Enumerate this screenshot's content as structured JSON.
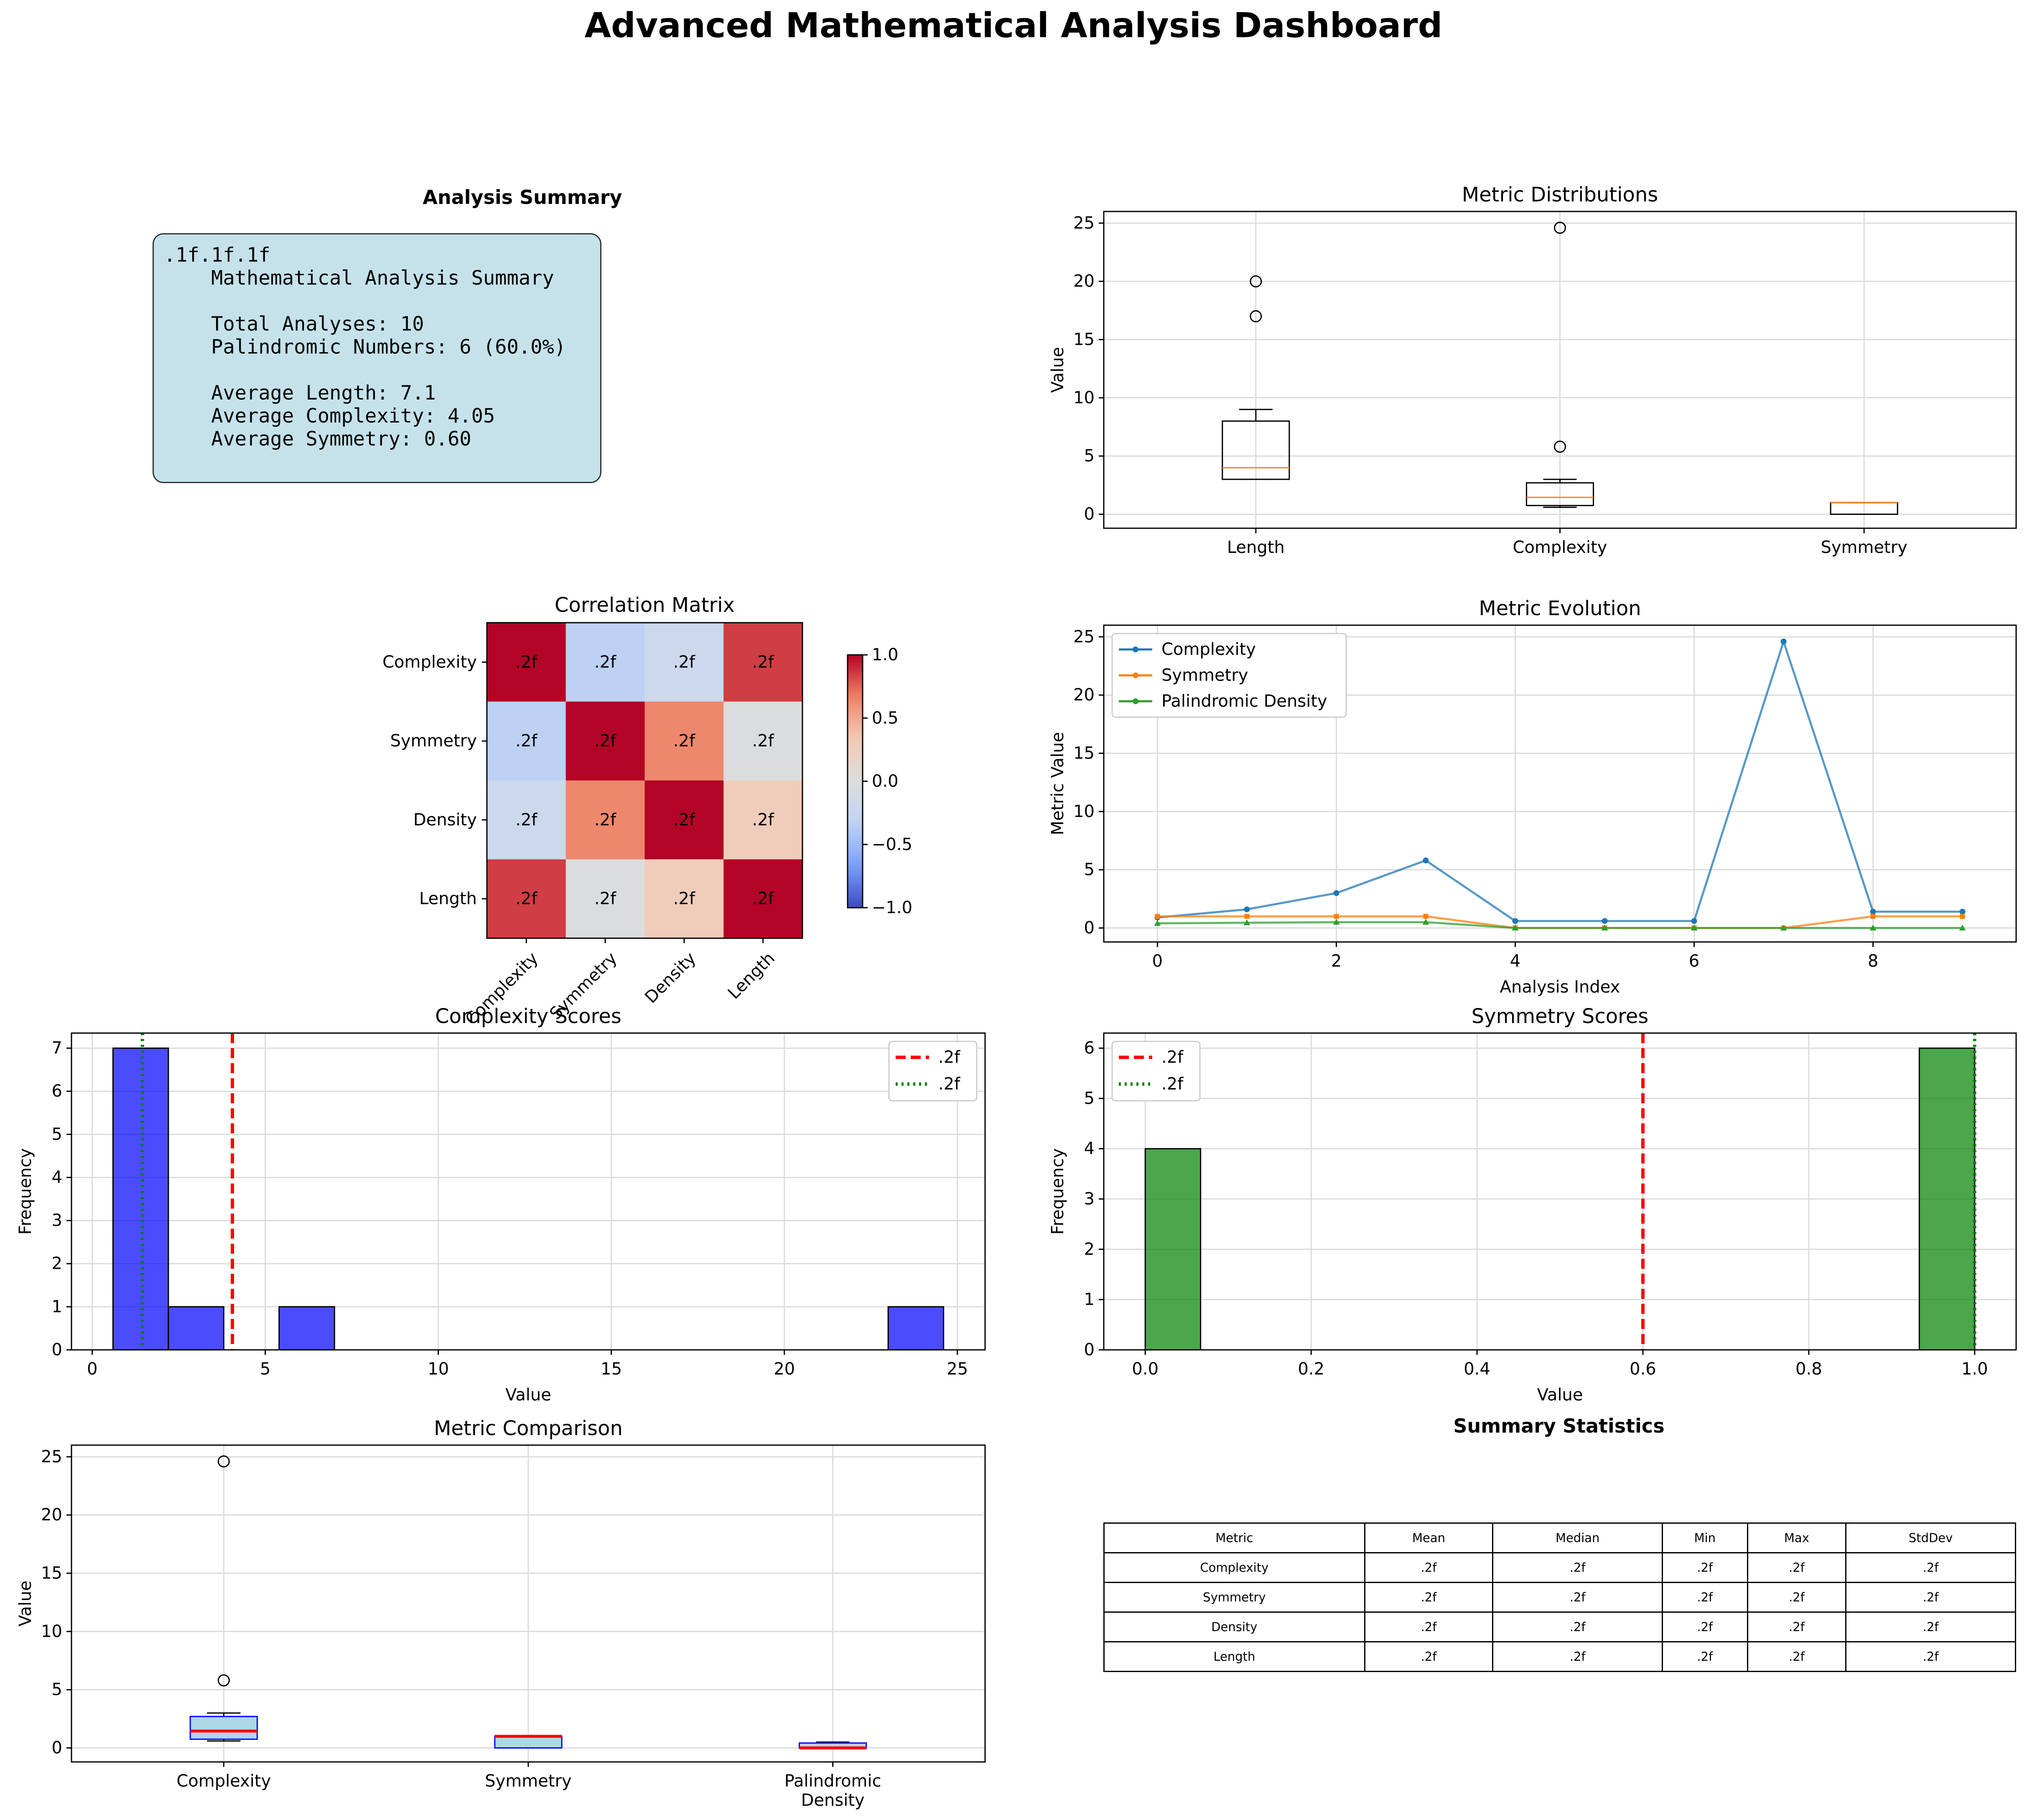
{
  "title": "Advanced Mathematical Analysis Dashboard",
  "summary": {
    "title": "Analysis Summary",
    "lines": [
      ".1f.1f.1f",
      "    Mathematical Analysis Summary",
      "",
      "    Total Analyses: 10",
      "    Palindromic Numbers: 6 (60.0%)",
      "",
      "    Average Length: 7.1",
      "    Average Complexity: 4.05",
      "    Average Symmetry: 0.60"
    ]
  },
  "chart_data": [
    {
      "id": "metric_distributions",
      "type": "box",
      "title": "Metric Distributions",
      "ylabel": "Value",
      "ylim": [
        -1.2,
        26
      ],
      "yticks": [
        0,
        5,
        10,
        15,
        20,
        25
      ],
      "grid": true,
      "categories": [
        "Length",
        "Complexity",
        "Symmetry"
      ],
      "boxes": [
        {
          "name": "Length",
          "min": 3,
          "q1": 3,
          "median": 4,
          "q3": 8,
          "max": 9,
          "outliers": [
            17,
            20
          ]
        },
        {
          "name": "Complexity",
          "min": 0.6,
          "q1": 0.75,
          "median": 1.45,
          "q3": 2.7,
          "max": 3.0,
          "outliers": [
            5.8,
            24.6
          ]
        },
        {
          "name": "Symmetry",
          "min": 0,
          "q1": 0,
          "median": 1,
          "q3": 1,
          "max": 1,
          "outliers": []
        }
      ]
    },
    {
      "id": "correlation_matrix",
      "type": "heatmap",
      "title": "Correlation Matrix",
      "rows": [
        "Complexity",
        "Symmetry",
        "Density",
        "Length"
      ],
      "cols": [
        "Complexity",
        "Symmetry",
        "Density",
        "Length"
      ],
      "values": [
        [
          1.0,
          -0.35,
          -0.2,
          0.85
        ],
        [
          -0.35,
          1.0,
          0.65,
          -0.02
        ],
        [
          -0.2,
          0.65,
          1.0,
          0.3
        ],
        [
          0.85,
          -0.02,
          0.3,
          1.0
        ]
      ],
      "cell_labels": [
        [
          ".2f",
          ".2f",
          ".2f",
          ".2f"
        ],
        [
          ".2f",
          ".2f",
          ".2f",
          ".2f"
        ],
        [
          ".2f",
          ".2f",
          ".2f",
          ".2f"
        ],
        [
          ".2f",
          ".2f",
          ".2f",
          ".2f"
        ]
      ],
      "colormap": "coolwarm",
      "vmin": -1.0,
      "vmax": 1.0,
      "colorbar_ticks": [
        1.0,
        0.5,
        0.0,
        -0.5,
        -1.0
      ],
      "colorbar_tick_labels": [
        "1.0",
        "0.5",
        "0.0",
        "−0.5",
        "−1.0"
      ]
    },
    {
      "id": "metric_evolution",
      "type": "line",
      "title": "Metric Evolution",
      "xlabel": "Analysis Index",
      "ylabel": "Metric Value",
      "xlim": [
        -0.6,
        9.6
      ],
      "ylim": [
        -1.2,
        26
      ],
      "xticks": [
        0,
        2,
        4,
        6,
        8
      ],
      "yticks": [
        0,
        5,
        10,
        15,
        20,
        25
      ],
      "grid": true,
      "legend": "top-left",
      "x": [
        0,
        1,
        2,
        3,
        4,
        5,
        6,
        7,
        8,
        9
      ],
      "series": [
        {
          "name": "Complexity",
          "color": "#1f77b4",
          "marker": "circle",
          "values": [
            0.9,
            1.6,
            3.0,
            5.8,
            0.6,
            0.6,
            0.6,
            24.6,
            1.4,
            1.4
          ]
        },
        {
          "name": "Symmetry",
          "color": "#ff7f0e",
          "marker": "square",
          "values": [
            1,
            1,
            1,
            1,
            0,
            0,
            0,
            0,
            1,
            1
          ]
        },
        {
          "name": "Palindromic Density",
          "color": "#2ca02c",
          "marker": "triangle",
          "values": [
            0.4,
            0.45,
            0.5,
            0.5,
            0,
            0,
            0,
            0,
            0,
            0
          ]
        }
      ]
    },
    {
      "id": "complexity_scores",
      "type": "histogram",
      "title": "Complexity Scores",
      "xlabel": "Value",
      "ylabel": "Frequency",
      "xlim": [
        -0.6,
        25.8
      ],
      "ylim": [
        0,
        7.35
      ],
      "xticks": [
        0,
        5,
        10,
        15,
        20,
        25
      ],
      "yticks": [
        0,
        1,
        2,
        3,
        4,
        5,
        6,
        7
      ],
      "grid": true,
      "color": "#0000ff",
      "bins": [
        {
          "x0": 0.6,
          "x1": 2.2,
          "count": 7
        },
        {
          "x0": 2.2,
          "x1": 3.8,
          "count": 1
        },
        {
          "x0": 3.8,
          "x1": 5.4,
          "count": 0
        },
        {
          "x0": 5.4,
          "x1": 7.0,
          "count": 1
        },
        {
          "x0": 7.0,
          "x1": 23.0,
          "count": 0
        },
        {
          "x0": 23.0,
          "x1": 24.6,
          "count": 1
        }
      ],
      "lines": [
        {
          "label": ".2f",
          "value": 4.05,
          "color": "#ff0000",
          "style": "dashed"
        },
        {
          "label": ".2f",
          "value": 1.45,
          "color": "#008000",
          "style": "dotted"
        }
      ],
      "legend": "top-right"
    },
    {
      "id": "symmetry_scores",
      "type": "histogram",
      "title": "Symmetry Scores",
      "xlabel": "Value",
      "ylabel": "Frequency",
      "xlim": [
        -0.05,
        1.05
      ],
      "ylim": [
        0,
        6.3
      ],
      "xticks": [
        0.0,
        0.2,
        0.4,
        0.6,
        0.8,
        1.0
      ],
      "xtick_labels": [
        "0.0",
        "0.2",
        "0.4",
        "0.6",
        "0.8",
        "1.0"
      ],
      "yticks": [
        0,
        1,
        2,
        3,
        4,
        5,
        6
      ],
      "grid": true,
      "color": "#008000",
      "bins": [
        {
          "x0": 0.0,
          "x1": 0.0667,
          "count": 4
        },
        {
          "x0": 0.9333,
          "x1": 1.0,
          "count": 6
        }
      ],
      "lines": [
        {
          "label": ".2f",
          "value": 0.6,
          "color": "#ff0000",
          "style": "dashed"
        },
        {
          "label": ".2f",
          "value": 1.0,
          "color": "#008000",
          "style": "dotted"
        }
      ],
      "legend": "top-left"
    },
    {
      "id": "metric_comparison",
      "type": "box",
      "title": "Metric Comparison",
      "ylabel": "Value",
      "ylim": [
        -1.2,
        26
      ],
      "yticks": [
        0,
        5,
        10,
        15,
        20,
        25
      ],
      "grid": true,
      "categories": [
        "Complexity",
        "Symmetry",
        "Palindromic\nDensity"
      ],
      "box_fill": "#add8e6",
      "box_edge": "#0000ff",
      "median_color": "#ff0000",
      "boxes": [
        {
          "name": "Complexity",
          "min": 0.6,
          "q1": 0.75,
          "median": 1.45,
          "q3": 2.7,
          "max": 3.0,
          "outliers": [
            5.8,
            24.6
          ]
        },
        {
          "name": "Symmetry",
          "min": 0,
          "q1": 0,
          "median": 1,
          "q3": 1,
          "max": 1,
          "outliers": []
        },
        {
          "name": "Palindromic\nDensity",
          "min": 0,
          "q1": 0,
          "median": 0,
          "q3": 0.42,
          "max": 0.5,
          "outliers": []
        }
      ]
    }
  ],
  "stats_table": {
    "title": "Summary Statistics",
    "headers": [
      "Metric",
      "Mean",
      "Median",
      "Min",
      "Max",
      "StdDev"
    ],
    "rows": [
      [
        "Complexity",
        ".2f",
        ".2f",
        ".2f",
        ".2f",
        ".2f"
      ],
      [
        "Symmetry",
        ".2f",
        ".2f",
        ".2f",
        ".2f",
        ".2f"
      ],
      [
        "Density",
        ".2f",
        ".2f",
        ".2f",
        ".2f",
        ".2f"
      ],
      [
        "Length",
        ".2f",
        ".2f",
        ".2f",
        ".2f",
        ".2f"
      ]
    ]
  }
}
